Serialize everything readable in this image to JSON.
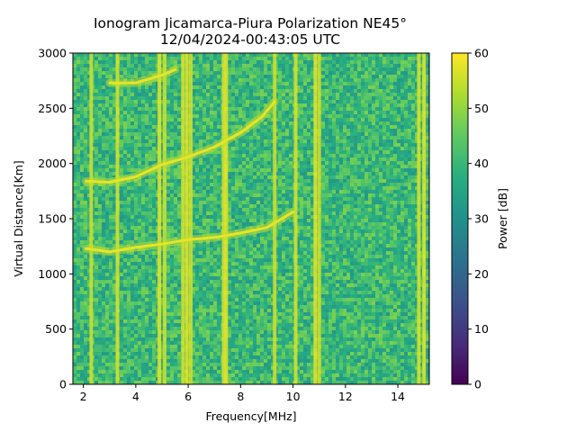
{
  "chart_data": {
    "type": "heatmap",
    "title": "Ionogram Jicamarca-Piura Polarization NE45°",
    "subtitle": "12/04/2024-00:43:05 UTC",
    "xlabel": "Frequency[MHz]",
    "ylabel": "Virtual Distance[Km]",
    "xlim": [
      1.6,
      15.2
    ],
    "ylim": [
      0,
      3000
    ],
    "xticks": [
      2,
      4,
      6,
      8,
      10,
      12,
      14
    ],
    "yticks": [
      0,
      500,
      1000,
      1500,
      2000,
      2500,
      3000
    ],
    "colorbar": {
      "label": "Power [dB]",
      "range": [
        0,
        60
      ],
      "ticks": [
        0,
        10,
        20,
        30,
        40,
        50,
        60
      ],
      "colormap": "viridis"
    },
    "background_level_db": 40,
    "echo_traces": [
      {
        "name": "first-hop trace",
        "points": [
          [
            2.1,
            1230
          ],
          [
            3.0,
            1200
          ],
          [
            4.0,
            1240
          ],
          [
            5.0,
            1270
          ],
          [
            6.0,
            1310
          ],
          [
            7.0,
            1330
          ],
          [
            8.0,
            1370
          ],
          [
            9.0,
            1420
          ],
          [
            10.0,
            1560
          ]
        ]
      },
      {
        "name": "second-hop trace",
        "points": [
          [
            2.1,
            1840
          ],
          [
            3.0,
            1830
          ],
          [
            4.0,
            1880
          ],
          [
            5.0,
            1990
          ],
          [
            6.0,
            2060
          ],
          [
            7.0,
            2150
          ],
          [
            8.0,
            2280
          ],
          [
            8.8,
            2420
          ],
          [
            9.3,
            2560
          ]
        ]
      },
      {
        "name": "third-hop trace",
        "points": [
          [
            3.0,
            2730
          ],
          [
            4.0,
            2730
          ],
          [
            5.0,
            2800
          ],
          [
            5.5,
            2850
          ]
        ]
      }
    ],
    "interference_bands_mhz": [
      2.3,
      3.3,
      4.9,
      5.1,
      5.8,
      5.95,
      6.1,
      7.35,
      7.45,
      9.3,
      10.1,
      10.85,
      11.0,
      14.8,
      15.0
    ]
  }
}
